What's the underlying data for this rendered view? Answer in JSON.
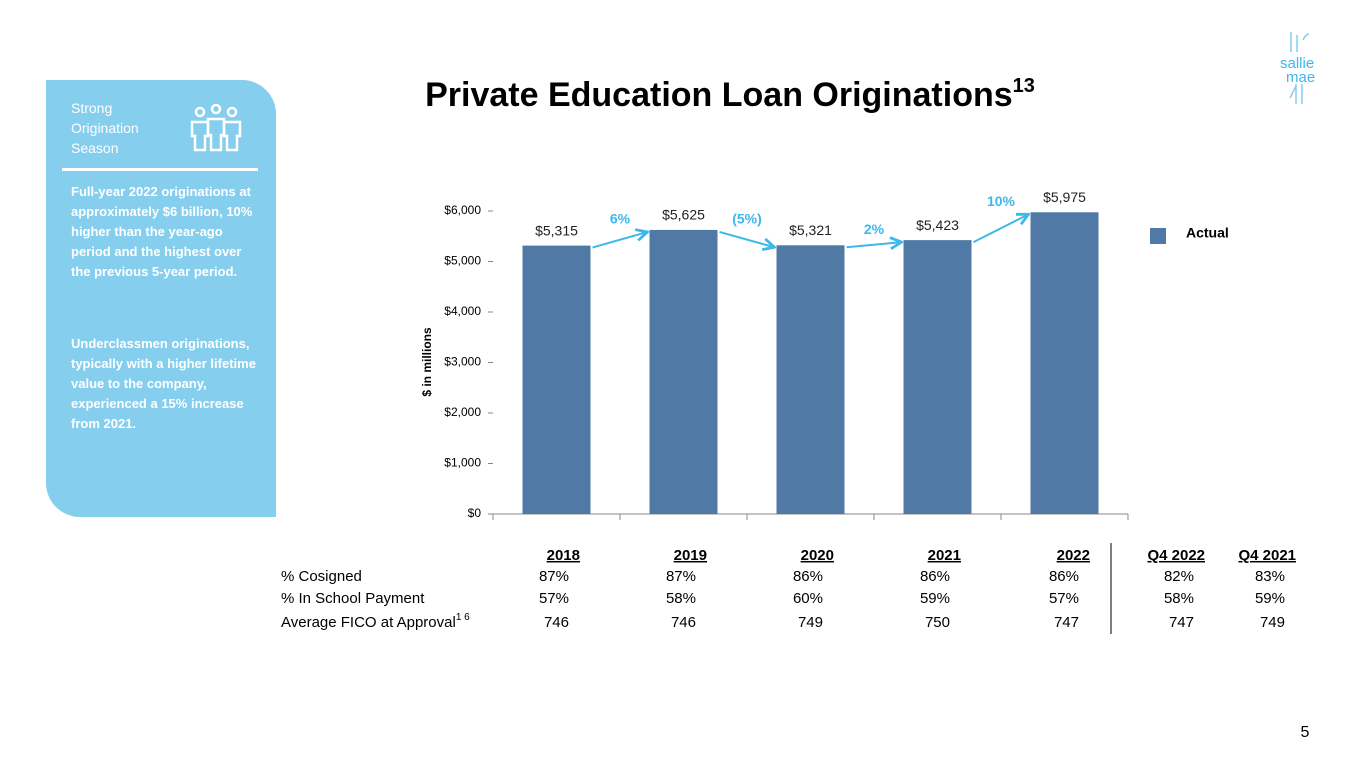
{
  "sidebar": {
    "heading": "Strong Origination Season",
    "paragraphs": [
      "Full-year 2022 originations at approximately $6 billion, 10% higher than the year-ago period and the highest over the previous 5-year period.",
      "Underclassmen originations, typically with a higher lifetime value to the company, experienced a 15% increase from 2021."
    ]
  },
  "logo": {
    "line1": "sallie",
    "line2": "mae"
  },
  "page_number": "5",
  "chart_data": {
    "type": "bar",
    "title": "Private Education Loan Originations",
    "title_note": "13",
    "ylabel": "$ in millions",
    "categories": [
      "2018",
      "2019",
      "2020",
      "2021",
      "2022"
    ],
    "series": [
      {
        "name": "Actual",
        "color": "#5079a5",
        "values": [
          5315,
          5625,
          5321,
          5423,
          5975
        ],
        "value_labels": [
          "$5,315",
          "$5,625",
          "$5,321",
          "$5,423",
          "$5,975"
        ]
      }
    ],
    "annotations": [
      "6%",
      "(5%)",
      "2%",
      "10%"
    ],
    "annotation_color": "#3db8ea",
    "ylim": [
      0,
      6000
    ],
    "yticks": [
      {
        "value": 0,
        "label": "$0"
      },
      {
        "value": 1000,
        "label": "$1,000"
      },
      {
        "value": 2000,
        "label": "$2,000"
      },
      {
        "value": 3000,
        "label": "$3,000"
      },
      {
        "value": 4000,
        "label": "$4,000"
      },
      {
        "value": 5000,
        "label": "$5,000"
      },
      {
        "value": 6000,
        "label": "$6,000"
      }
    ],
    "legend": "right"
  },
  "table": {
    "extra_columns": [
      "Q4 2022",
      "Q4 2021"
    ],
    "rows": [
      {
        "label": "% Cosigned",
        "cells": [
          "87%",
          "87%",
          "86%",
          "86%",
          "86%",
          "82%",
          "83%"
        ]
      },
      {
        "label": "% In School Payment",
        "cells": [
          "57%",
          "58%",
          "60%",
          "59%",
          "57%",
          "58%",
          "59%"
        ]
      },
      {
        "label": "Average FICO at Approval",
        "note": "1 6",
        "cells": [
          "746",
          "746",
          "749",
          "750",
          "747",
          "747",
          "749"
        ]
      }
    ]
  }
}
